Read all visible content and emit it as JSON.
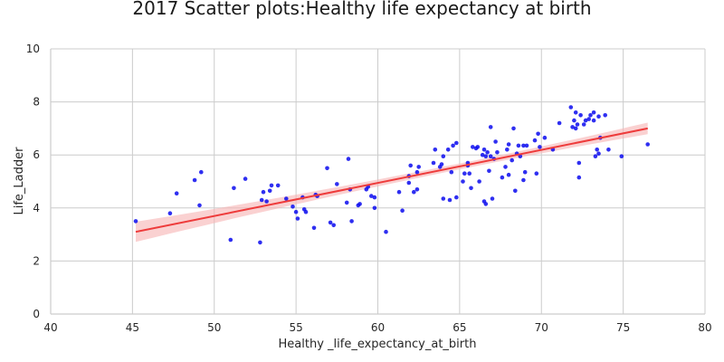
{
  "colors": {
    "points": "#0a0aee",
    "regression_line": "#ee3b3b",
    "confidence_band": "#f7b3b3",
    "grid": "#cccccc"
  },
  "chart_data": {
    "type": "scatter",
    "title": "2017 Scatter plots:Healthy life expectancy at birth",
    "xlabel": "Healthy _life_expectancy_at_birth",
    "ylabel": "Life_Ladder",
    "xlim": [
      40,
      80
    ],
    "ylim": [
      0,
      10
    ],
    "xticks": [
      "40",
      "45",
      "50",
      "55",
      "60",
      "65",
      "70",
      "75",
      "80"
    ],
    "yticks": [
      "0",
      "2",
      "4",
      "6",
      "8",
      "10"
    ],
    "grid": true,
    "regression": {
      "x": [
        45.2,
        76.5
      ],
      "y": [
        3.1,
        7.0
      ],
      "ci_lower": [
        2.72,
        6.78
      ],
      "ci_upper": [
        3.48,
        7.22
      ]
    },
    "points": [
      [
        45.2,
        3.5
      ],
      [
        47.3,
        3.8
      ],
      [
        47.7,
        4.55
      ],
      [
        48.8,
        5.05
      ],
      [
        49.1,
        4.1
      ],
      [
        49.2,
        5.35
      ],
      [
        51.0,
        2.8
      ],
      [
        51.2,
        4.75
      ],
      [
        51.9,
        5.1
      ],
      [
        52.8,
        2.7
      ],
      [
        52.9,
        4.3
      ],
      [
        53.0,
        4.6
      ],
      [
        53.2,
        4.25
      ],
      [
        53.4,
        4.65
      ],
      [
        53.5,
        4.85
      ],
      [
        53.9,
        4.85
      ],
      [
        54.4,
        4.35
      ],
      [
        54.8,
        4.05
      ],
      [
        55.0,
        3.85
      ],
      [
        55.1,
        3.6
      ],
      [
        55.4,
        4.4
      ],
      [
        55.6,
        3.85
      ],
      [
        55.5,
        3.95
      ],
      [
        56.1,
        3.25
      ],
      [
        56.2,
        4.5
      ],
      [
        56.3,
        4.45
      ],
      [
        56.9,
        5.5
      ],
      [
        57.1,
        3.45
      ],
      [
        57.3,
        3.35
      ],
      [
        57.5,
        4.9
      ],
      [
        58.1,
        4.2
      ],
      [
        58.2,
        5.85
      ],
      [
        58.3,
        4.7
      ],
      [
        58.4,
        3.5
      ],
      [
        58.8,
        4.1
      ],
      [
        58.9,
        4.15
      ],
      [
        59.3,
        4.7
      ],
      [
        59.4,
        4.8
      ],
      [
        59.6,
        4.45
      ],
      [
        59.8,
        4.4
      ],
      [
        59.8,
        4.0
      ],
      [
        60.5,
        3.1
      ],
      [
        61.3,
        4.6
      ],
      [
        61.5,
        3.9
      ],
      [
        61.9,
        4.95
      ],
      [
        61.9,
        5.2
      ],
      [
        62.0,
        5.6
      ],
      [
        62.2,
        4.6
      ],
      [
        62.4,
        4.7
      ],
      [
        62.4,
        5.35
      ],
      [
        62.5,
        5.55
      ],
      [
        63.4,
        5.7
      ],
      [
        63.5,
        6.2
      ],
      [
        63.8,
        5.55
      ],
      [
        63.9,
        5.65
      ],
      [
        64.0,
        5.95
      ],
      [
        64.0,
        4.35
      ],
      [
        64.3,
        6.2
      ],
      [
        64.4,
        4.3
      ],
      [
        64.5,
        5.35
      ],
      [
        64.6,
        6.35
      ],
      [
        64.8,
        6.45
      ],
      [
        64.8,
        4.4
      ],
      [
        65.2,
        5.0
      ],
      [
        65.3,
        5.3
      ],
      [
        65.5,
        5.6
      ],
      [
        65.5,
        5.7
      ],
      [
        65.6,
        5.3
      ],
      [
        65.7,
        4.75
      ],
      [
        65.8,
        6.3
      ],
      [
        66.0,
        6.25
      ],
      [
        66.1,
        6.3
      ],
      [
        66.2,
        5.0
      ],
      [
        66.4,
        6.0
      ],
      [
        66.5,
        6.2
      ],
      [
        66.5,
        4.25
      ],
      [
        66.6,
        4.15
      ],
      [
        66.6,
        5.95
      ],
      [
        66.7,
        6.1
      ],
      [
        66.8,
        5.4
      ],
      [
        66.9,
        7.05
      ],
      [
        66.9,
        5.95
      ],
      [
        67.0,
        4.35
      ],
      [
        67.1,
        5.85
      ],
      [
        67.2,
        6.5
      ],
      [
        67.3,
        6.1
      ],
      [
        67.6,
        5.15
      ],
      [
        67.8,
        5.55
      ],
      [
        67.9,
        6.2
      ],
      [
        68.0,
        5.25
      ],
      [
        68.0,
        6.4
      ],
      [
        68.2,
        5.8
      ],
      [
        68.3,
        7.0
      ],
      [
        68.4,
        4.65
      ],
      [
        68.5,
        6.05
      ],
      [
        68.6,
        6.35
      ],
      [
        68.7,
        5.95
      ],
      [
        68.9,
        6.35
      ],
      [
        68.9,
        5.05
      ],
      [
        69.0,
        5.35
      ],
      [
        69.1,
        6.35
      ],
      [
        69.6,
        6.55
      ],
      [
        69.7,
        5.3
      ],
      [
        69.8,
        6.8
      ],
      [
        69.9,
        6.3
      ],
      [
        70.2,
        6.65
      ],
      [
        70.7,
        6.2
      ],
      [
        71.1,
        7.2
      ],
      [
        71.8,
        7.8
      ],
      [
        71.9,
        7.05
      ],
      [
        72.0,
        7.3
      ],
      [
        72.1,
        7.0
      ],
      [
        72.1,
        7.6
      ],
      [
        72.2,
        7.15
      ],
      [
        72.3,
        5.7
      ],
      [
        72.3,
        5.15
      ],
      [
        72.4,
        7.5
      ],
      [
        72.6,
        7.15
      ],
      [
        72.7,
        7.3
      ],
      [
        72.9,
        7.35
      ],
      [
        73.0,
        7.5
      ],
      [
        73.2,
        7.6
      ],
      [
        73.2,
        7.3
      ],
      [
        73.3,
        5.95
      ],
      [
        73.4,
        6.2
      ],
      [
        73.5,
        7.45
      ],
      [
        73.5,
        6.05
      ],
      [
        73.6,
        6.65
      ],
      [
        73.9,
        7.5
      ],
      [
        74.1,
        6.2
      ],
      [
        74.9,
        5.95
      ],
      [
        76.5,
        6.4
      ]
    ]
  }
}
